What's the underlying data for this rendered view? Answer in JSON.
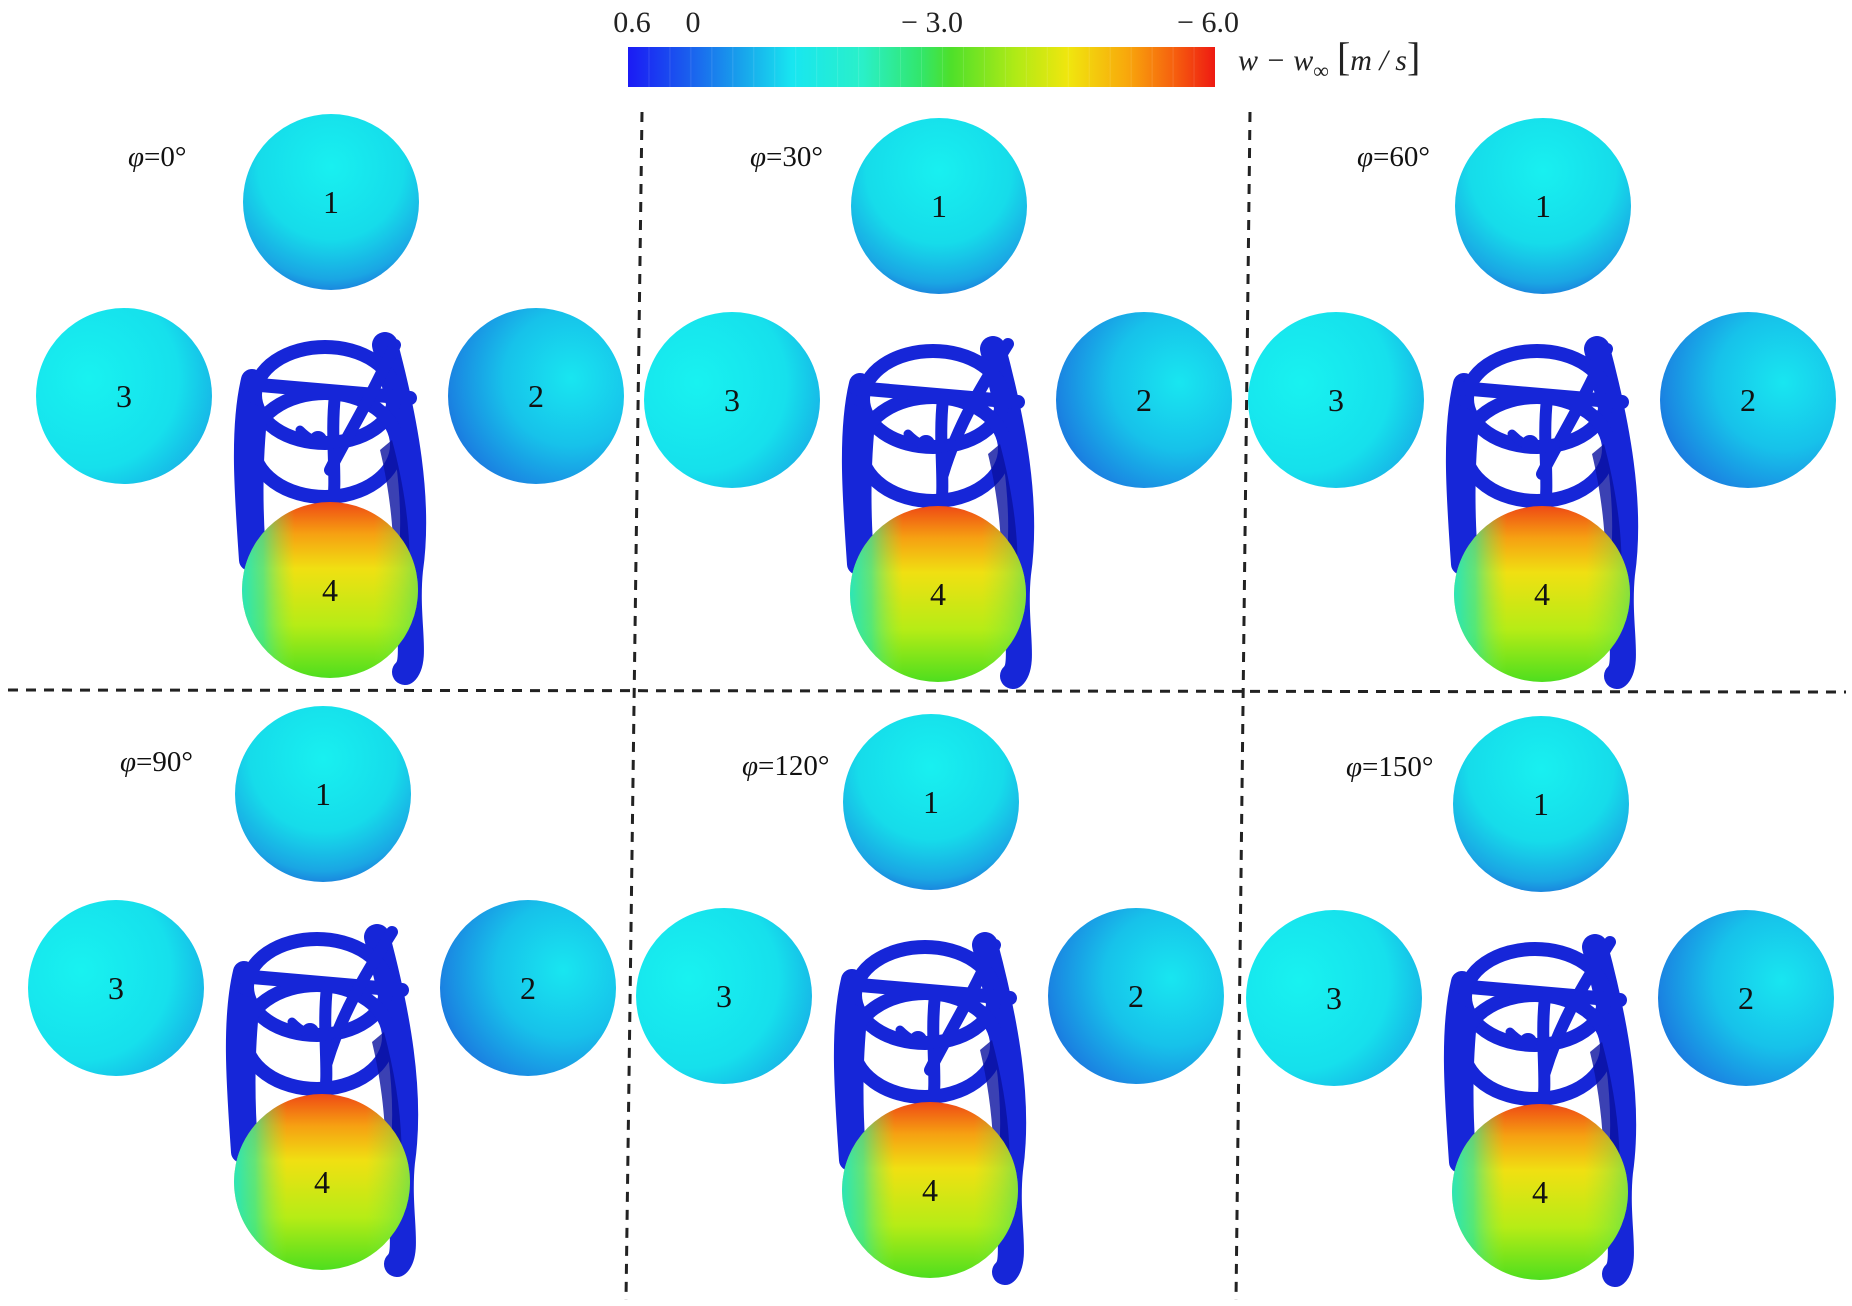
{
  "colorbar": {
    "ticks": [
      "0.6",
      "0",
      "− 3.0",
      "− 6.0"
    ],
    "label": {
      "prefix": "w − w",
      "subscript": "∞",
      "bracket_open": "[",
      "unit": "m / s",
      "bracket_close": "]"
    },
    "colors": [
      "#1b1bf5",
      "#1a49f0",
      "#1a7fe6",
      "#17b7ec",
      "#18e6f0",
      "#2af0c8",
      "#3aee8a",
      "#37e03a",
      "#8ee61a",
      "#d6ee12",
      "#f4e10e",
      "#f8b40c",
      "#f8800c",
      "#f54a0e",
      "#ee1a12"
    ]
  },
  "panels": [
    {
      "phi": "φ",
      "angle": "=0°"
    },
    {
      "phi": "φ",
      "angle": "=30°"
    },
    {
      "phi": "φ",
      "angle": "=60°"
    },
    {
      "phi": "φ",
      "angle": "=90°"
    },
    {
      "phi": "φ",
      "angle": "=120°"
    },
    {
      "phi": "φ",
      "angle": "=150°"
    }
  ],
  "sphere_labels": [
    "1",
    "2",
    "3",
    "4"
  ],
  "colors": {
    "cyan_sphere": "#14e8ee",
    "cyan_sphere_dark": "#1a7fe6",
    "wake": "#1626d8",
    "wake_dark": "#0a12a0",
    "sphere4_hot": "#f05a12",
    "sphere4_mid": "#e6ee14",
    "sphere4_low": "#54e01a",
    "divider": "#222222"
  }
}
